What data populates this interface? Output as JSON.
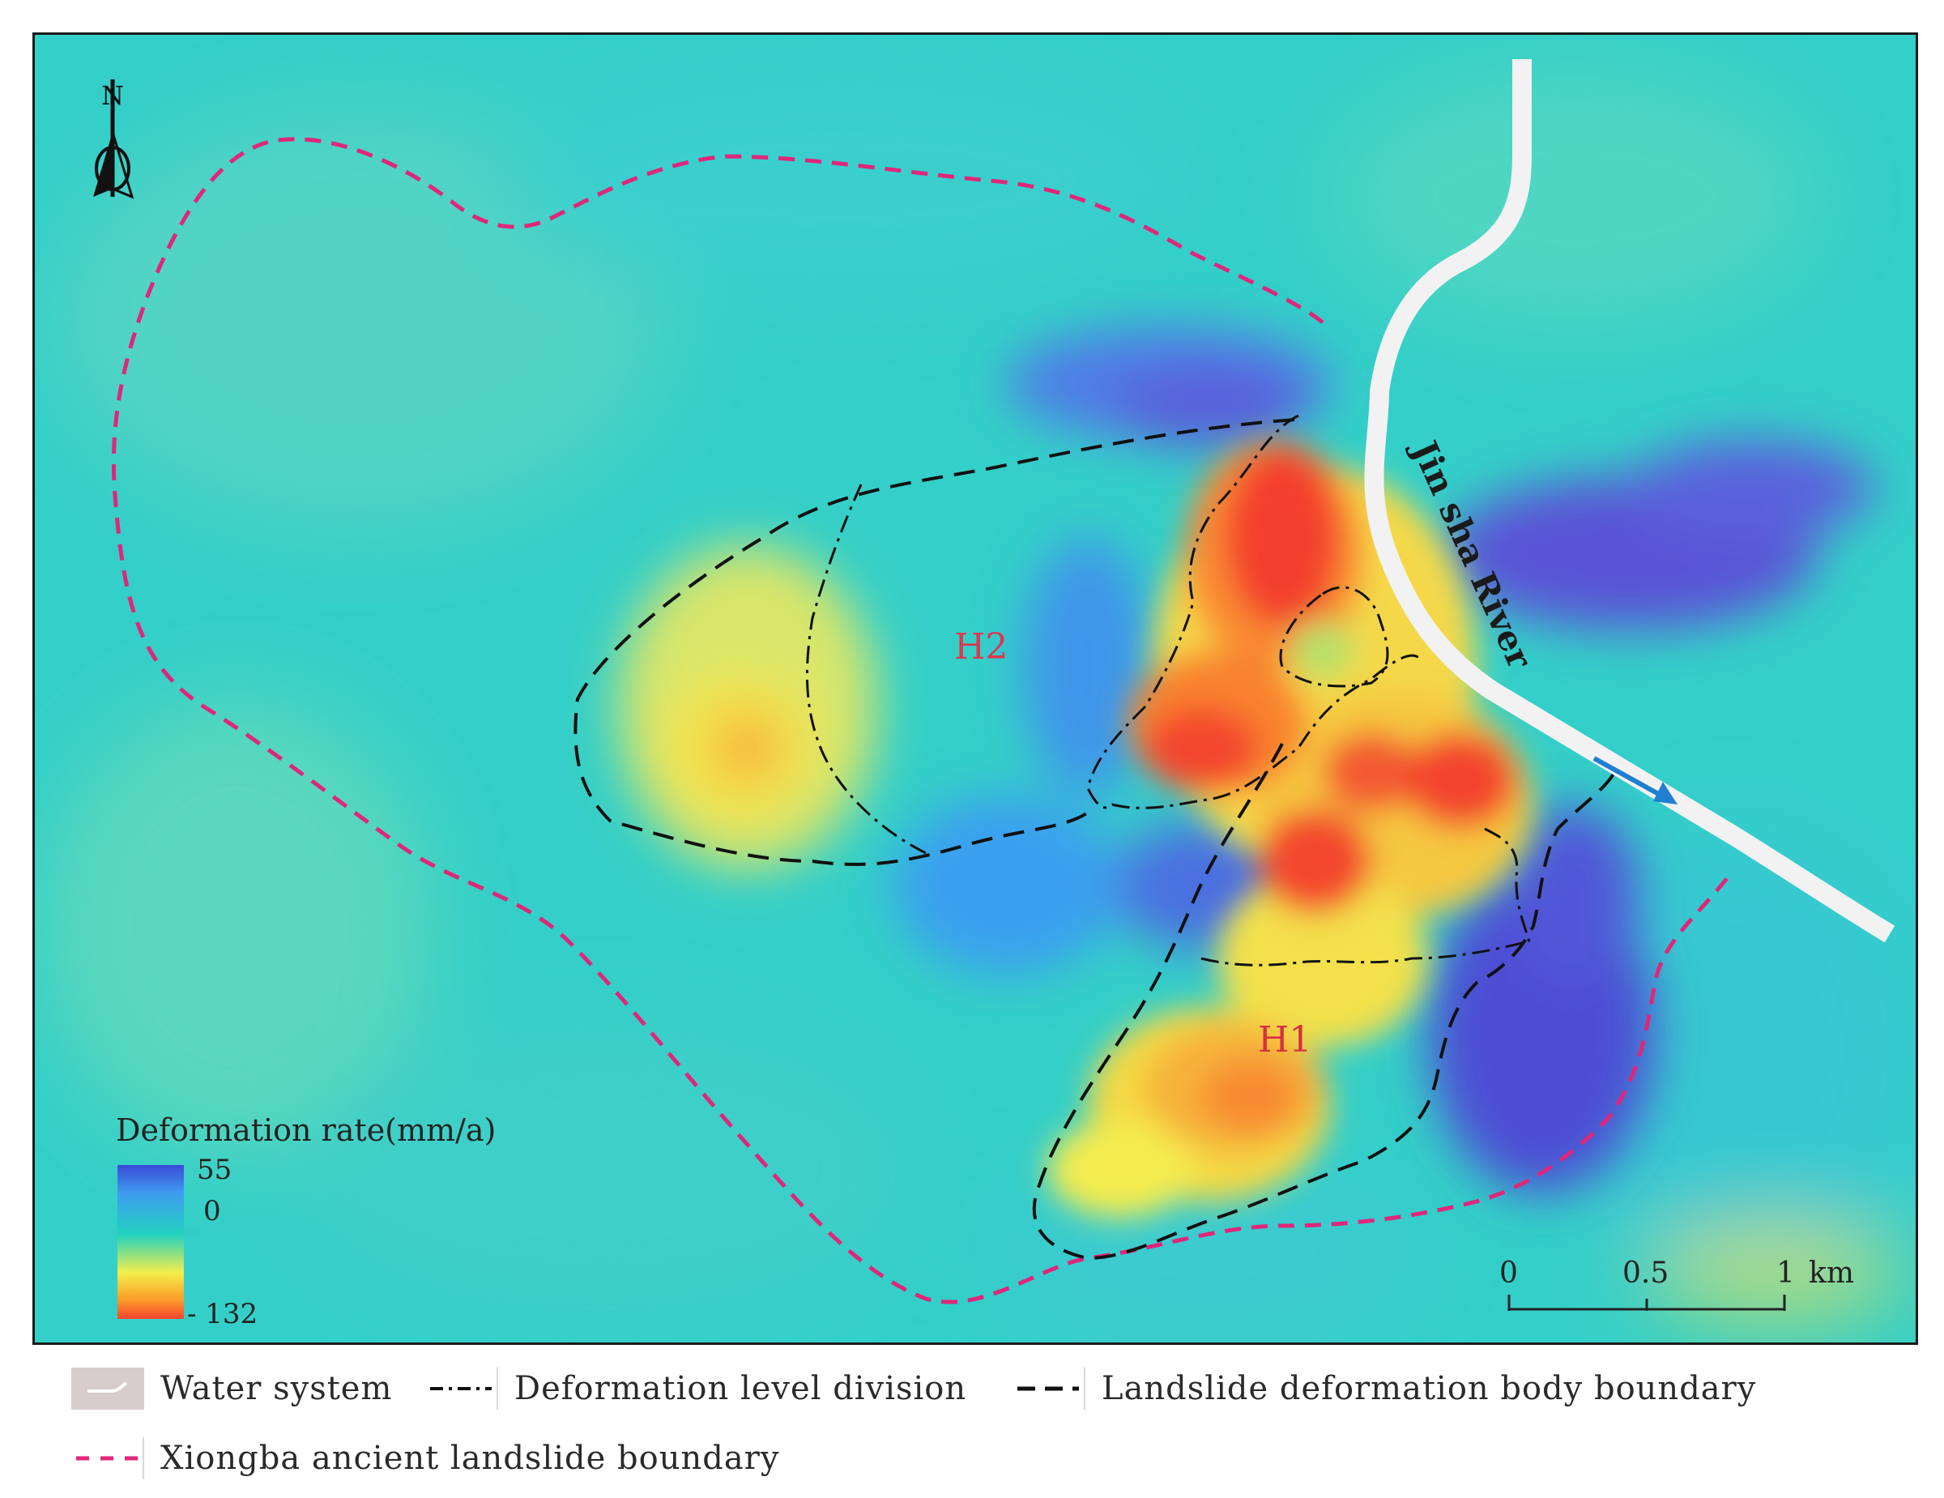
{
  "map": {
    "river_label": "Jin sha River",
    "zones": [
      {
        "id": "H2",
        "label": "H2"
      },
      {
        "id": "H1",
        "label": "H1"
      }
    ],
    "north_arrow": {
      "label": "N",
      "icon": "north-arrow-icon"
    },
    "colorbar": {
      "title": "Deformation rate(mm/a)",
      "max_label": "55",
      "zero_label": "0",
      "min_label": "- 132",
      "colors": [
        "#3a4ad8",
        "#3f9bf0",
        "#22d2c0",
        "#f4ee4a",
        "#fb9a2a",
        "#f4442e"
      ]
    },
    "scale_bar": {
      "ticks": [
        "0",
        "0.5",
        "1"
      ],
      "unit": "km"
    }
  },
  "legend": {
    "items": [
      {
        "id": "water",
        "label": "Water system",
        "icon": "water-system-icon",
        "color": "#d9cccc"
      },
      {
        "id": "deformation-level",
        "label": "Deformation level division",
        "icon": "dash-dot-line-icon",
        "color": "#111111"
      },
      {
        "id": "landslide-body",
        "label": "Landslide deformation body boundary",
        "icon": "dashed-line-icon",
        "color": "#111111"
      },
      {
        "id": "ancient-landslide",
        "label": "Xiongba ancient landslide boundary",
        "icon": "dashed-line-icon",
        "color": "#e0267a"
      }
    ]
  },
  "colors": {
    "background_cyan": "#2fd0c6",
    "uplift_blue": "#3f5fe0",
    "subsidence_red": "#f4442e",
    "ancient_boundary": "#e0267a",
    "river": "#f2f2f2",
    "flow_arrow": "#1f7fd0"
  }
}
